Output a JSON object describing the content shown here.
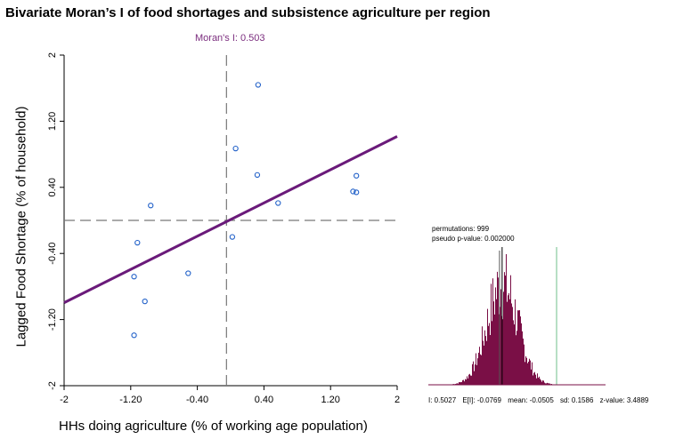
{
  "title": "Bivariate Moran’s I of food shortages and subsistence agriculture per region",
  "chart_data": [
    {
      "type": "scatter",
      "xlabel": "HHs doing agriculture (% of working age population)",
      "ylabel": "Lagged Food Shortage (% of household)",
      "annotation": "Moran's I: 0.503",
      "xlim": [
        -2,
        2
      ],
      "ylim": [
        -2,
        2
      ],
      "x_ticks": [
        "-2",
        "-1.20",
        "-0.40",
        "0.40",
        "1.20",
        "2"
      ],
      "y_ticks": [
        "-2",
        "-1.20",
        "-0.40",
        "0.40",
        "1.20",
        "2"
      ],
      "x_tick_values": [
        -2,
        -1.2,
        -0.4,
        0.4,
        1.2,
        2
      ],
      "y_tick_values": [
        -2,
        -1.2,
        -0.4,
        0.4,
        1.2,
        2
      ],
      "points": [
        {
          "x": 0.33,
          "y": 1.64
        },
        {
          "x": 0.06,
          "y": 0.87
        },
        {
          "x": 0.32,
          "y": 0.55
        },
        {
          "x": 1.51,
          "y": 0.54
        },
        {
          "x": 1.47,
          "y": 0.35
        },
        {
          "x": 1.51,
          "y": 0.34
        },
        {
          "x": 0.57,
          "y": 0.21
        },
        {
          "x": -0.96,
          "y": 0.18
        },
        {
          "x": 0.02,
          "y": -0.2
        },
        {
          "x": -1.12,
          "y": -0.27
        },
        {
          "x": -0.51,
          "y": -0.64
        },
        {
          "x": -1.16,
          "y": -0.68
        },
        {
          "x": -1.03,
          "y": -0.98
        },
        {
          "x": -1.16,
          "y": -1.39
        }
      ],
      "regression": {
        "slope": 0.503,
        "intercept": 0.01
      },
      "mean_lines": {
        "x": -0.05,
        "y": 0.0
      }
    },
    {
      "type": "histogram",
      "permutations": "permutations: 999",
      "pseudo_p": "pseudo p-value: 0.002000",
      "stats": {
        "I": "I: 0.5027",
        "EI": "E[I]: -0.0769",
        "mean": "mean: -0.0505",
        "sd": "sd: 0.1586",
        "z": "z-value: 3.4889"
      },
      "observed": 0.5027,
      "expected": -0.0769,
      "mean_value": -0.0505,
      "sd_value": 0.1586,
      "range": [
        -0.8,
        1.0
      ],
      "colors": {
        "bars": "#7a0f46",
        "observed_line": "#6fc08b",
        "mean_line": "#000000"
      }
    }
  ]
}
